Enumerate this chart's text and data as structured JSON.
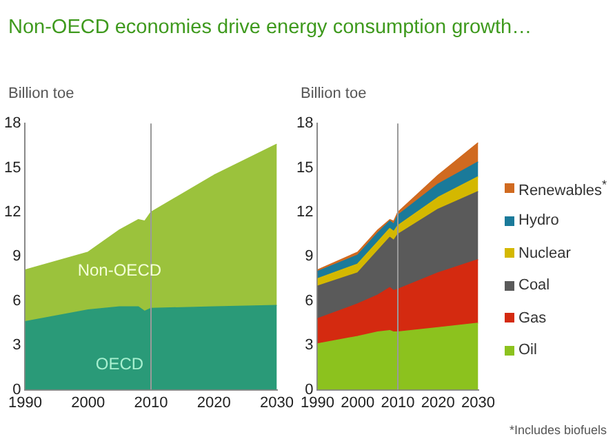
{
  "chart_data": [
    {
      "type": "area",
      "title": "Non-OECD economies drive energy consumption growth…",
      "ylabel": "Billion toe",
      "stacked": true,
      "x": [
        1990,
        2000,
        2005,
        2008,
        2009,
        2010,
        2020,
        2030
      ],
      "xlim": [
        1990,
        2030
      ],
      "xticks": [
        1990,
        2000,
        2010,
        2020,
        2030
      ],
      "ylim": [
        0,
        18
      ],
      "yticks": [
        0,
        3,
        6,
        9,
        12,
        15,
        18
      ],
      "grid": false,
      "legend": false,
      "ref_lines": [
        {
          "axis": "x",
          "value": 2010,
          "color": "#9a9a9a"
        }
      ],
      "series": [
        {
          "name": "OECD",
          "color": "#2a9a78",
          "values": [
            4.6,
            5.4,
            5.6,
            5.6,
            5.3,
            5.5,
            5.6,
            5.7
          ]
        },
        {
          "name": "Non-OECD",
          "color": "#9bc23c",
          "values": [
            3.5,
            3.9,
            5.2,
            5.9,
            6.1,
            6.5,
            8.9,
            10.9
          ]
        }
      ]
    },
    {
      "type": "area",
      "ylabel": "Billion toe",
      "stacked": true,
      "x": [
        1990,
        2000,
        2005,
        2008,
        2009,
        2010,
        2020,
        2030
      ],
      "xlim": [
        1990,
        2030
      ],
      "xticks": [
        1990,
        2000,
        2010,
        2020,
        2030
      ],
      "ylim": [
        0,
        18
      ],
      "yticks": [
        0,
        3,
        6,
        9,
        12,
        15,
        18
      ],
      "grid": false,
      "legend": "right",
      "ref_lines": [
        {
          "axis": "x",
          "value": 2010,
          "color": "#9a9a9a"
        }
      ],
      "annotations": [
        "*Includes biofuels"
      ],
      "series": [
        {
          "name": "Oil",
          "color": "#8cc21e",
          "values": [
            3.1,
            3.6,
            3.9,
            4.0,
            3.9,
            3.9,
            4.2,
            4.5
          ]
        },
        {
          "name": "Gas",
          "color": "#d42a10",
          "values": [
            1.7,
            2.2,
            2.5,
            2.9,
            2.8,
            2.9,
            3.7,
            4.3
          ]
        },
        {
          "name": "Coal",
          "color": "#5a5a5a",
          "values": [
            2.2,
            2.1,
            3.0,
            3.4,
            3.4,
            3.7,
            4.3,
            4.6
          ]
        },
        {
          "name": "Nuclear",
          "color": "#d4b800",
          "values": [
            0.5,
            0.6,
            0.6,
            0.6,
            0.6,
            0.6,
            0.8,
            1.0
          ]
        },
        {
          "name": "Hydro",
          "color": "#1a7a9a",
          "values": [
            0.5,
            0.6,
            0.6,
            0.5,
            0.5,
            0.7,
            0.9,
            1.0
          ]
        },
        {
          "name": "Renewables$^{*}$",
          "color": "#d06a20",
          "values": [
            0.1,
            0.2,
            0.2,
            0.1,
            0.2,
            0.2,
            0.6,
            1.3
          ]
        }
      ]
    }
  ]
}
